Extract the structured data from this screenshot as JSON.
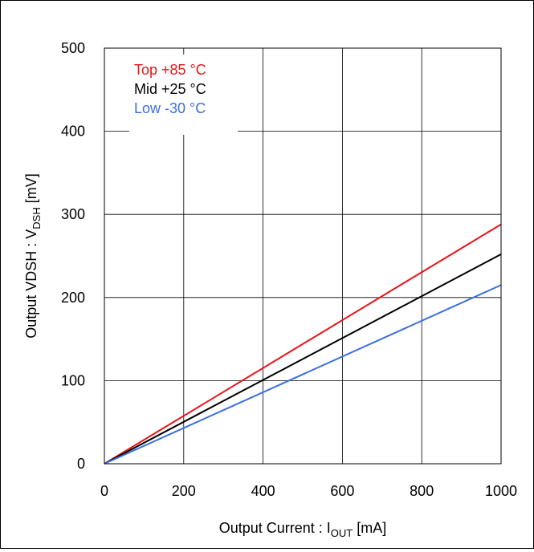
{
  "chart_data": {
    "type": "line",
    "xlabel": {
      "prefix": "Output Current : I",
      "sub": "OUT",
      "suffix": " [mA]"
    },
    "ylabel": {
      "prefix": "Output VDSH : V",
      "sub": "DSH",
      "suffix": " [mV]"
    },
    "xlim": [
      0,
      1000
    ],
    "ylim": [
      0,
      500
    ],
    "x_ticks": [
      "0",
      "200",
      "400",
      "600",
      "800",
      "1000"
    ],
    "y_ticks": [
      "0",
      "100",
      "200",
      "300",
      "400",
      "500"
    ],
    "grid": true,
    "legend_position": "top-left",
    "series": [
      {
        "name": "Top +85 °C",
        "color": "#e8141b",
        "x": [
          0,
          1000
        ],
        "y": [
          0,
          288
        ]
      },
      {
        "name": "Mid +25 °C",
        "color": "#000000",
        "x": [
          0,
          1000
        ],
        "y": [
          0,
          252
        ]
      },
      {
        "name": "Low -30 °C",
        "color": "#3a6fe0",
        "x": [
          0,
          1000
        ],
        "y": [
          0,
          215
        ]
      }
    ]
  }
}
